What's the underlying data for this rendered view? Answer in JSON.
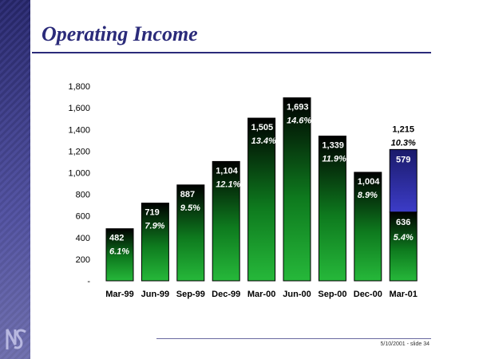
{
  "slide": {
    "title": "Operating Income",
    "footer": "5/10/2001 - slide 34"
  },
  "colors": {
    "title": "#2b2b7a",
    "bar_green": "#0e7a1e",
    "bar_blue": "#24249a",
    "sidebar": "#2a2a6e"
  },
  "chart_data": {
    "type": "bar",
    "ylim": [
      0,
      1800
    ],
    "yticks": [
      0,
      200,
      400,
      600,
      800,
      1000,
      1200,
      1400,
      1600,
      1800
    ],
    "ytick_labels": [
      "-",
      "200",
      "400",
      "600",
      "800",
      "1,000",
      "1,200",
      "1,400",
      "1,600",
      "1,800"
    ],
    "categories": [
      "Mar-99",
      "Jun-99",
      "Sep-99",
      "Dec-99",
      "Mar-00",
      "Jun-00",
      "Sep-00",
      "Dec-00",
      "Mar-01"
    ],
    "values": [
      482,
      719,
      887,
      1104,
      1505,
      1693,
      1339,
      1004,
      1215
    ],
    "value_labels": [
      "482",
      "719",
      "887",
      "1,104",
      "1,505",
      "1,693",
      "1,339",
      "1,004",
      "1,215"
    ],
    "margin_labels": [
      "6.1%",
      "7.9%",
      "9.5%",
      "12.1%",
      "13.4%",
      "14.6%",
      "11.9%",
      "8.9%",
      "10.3%"
    ],
    "stack_last": {
      "bottom": 636,
      "bottom_label": "636",
      "bottom_margin": "5.4%",
      "top": 579,
      "top_label": "579"
    }
  }
}
